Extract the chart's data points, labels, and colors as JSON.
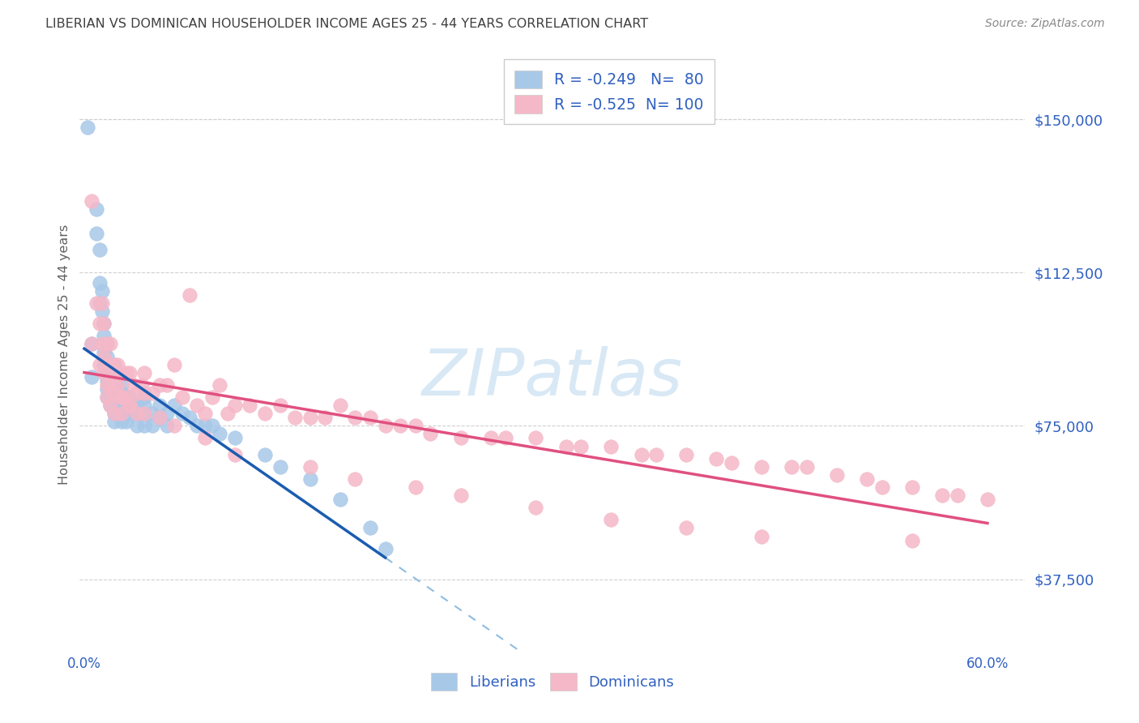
{
  "title": "LIBERIAN VS DOMINICAN HOUSEHOLDER INCOME AGES 25 - 44 YEARS CORRELATION CHART",
  "source": "Source: ZipAtlas.com",
  "ylabel": "Householder Income Ages 25 - 44 years",
  "xlabel_ticks": [
    "0.0%",
    "",
    "",
    "",
    "",
    "",
    "60.0%"
  ],
  "xlabel_vals": [
    0.0,
    0.1,
    0.2,
    0.3,
    0.4,
    0.5,
    0.6
  ],
  "yticks": [
    37500,
    75000,
    112500,
    150000
  ],
  "ytick_labels": [
    "$37,500",
    "$75,000",
    "$112,500",
    "$150,000"
  ],
  "ylim": [
    20000,
    165000
  ],
  "xlim": [
    -0.003,
    0.625
  ],
  "liberian_R": -0.249,
  "liberian_N": 80,
  "dominican_R": -0.525,
  "dominican_N": 100,
  "liberian_color": "#a8c8e8",
  "dominican_color": "#f5b8c8",
  "liberian_line_color": "#1a5cb0",
  "dominican_line_color": "#e05080",
  "dashed_line_color": "#90bce0",
  "legend_text_color": "#3060c0",
  "title_color": "#404040",
  "source_color": "#888888",
  "ylabel_color": "#606060",
  "ytick_color": "#3060c0",
  "xtick_color": "#3060c0",
  "grid_color": "#d0d0d0",
  "background_color": "#ffffff",
  "watermark": "ZIPatlas",
  "watermark_color": "#d8e8f5",
  "liberian_x": [
    0.002,
    0.005,
    0.005,
    0.008,
    0.008,
    0.01,
    0.01,
    0.01,
    0.012,
    0.012,
    0.013,
    0.013,
    0.013,
    0.013,
    0.015,
    0.015,
    0.015,
    0.015,
    0.015,
    0.015,
    0.015,
    0.017,
    0.017,
    0.017,
    0.017,
    0.017,
    0.02,
    0.02,
    0.02,
    0.02,
    0.02,
    0.02,
    0.02,
    0.02,
    0.022,
    0.022,
    0.022,
    0.022,
    0.025,
    0.025,
    0.025,
    0.025,
    0.025,
    0.028,
    0.028,
    0.028,
    0.028,
    0.03,
    0.03,
    0.03,
    0.033,
    0.033,
    0.035,
    0.035,
    0.035,
    0.038,
    0.04,
    0.04,
    0.04,
    0.04,
    0.045,
    0.045,
    0.05,
    0.05,
    0.055,
    0.055,
    0.06,
    0.065,
    0.07,
    0.075,
    0.08,
    0.085,
    0.09,
    0.1,
    0.12,
    0.13,
    0.15,
    0.17,
    0.19,
    0.2
  ],
  "liberian_y": [
    148000,
    95000,
    87000,
    128000,
    122000,
    118000,
    110000,
    105000,
    108000,
    103000,
    100000,
    97000,
    93000,
    90000,
    95000,
    92000,
    90000,
    88000,
    86000,
    84000,
    82000,
    90000,
    88000,
    85000,
    83000,
    80000,
    90000,
    88000,
    86000,
    84000,
    82000,
    80000,
    78000,
    76000,
    88000,
    85000,
    83000,
    80000,
    85000,
    83000,
    80000,
    78000,
    76000,
    82000,
    80000,
    78000,
    76000,
    82000,
    80000,
    78000,
    80000,
    78000,
    80000,
    78000,
    75000,
    78000,
    82000,
    80000,
    78000,
    75000,
    78000,
    75000,
    80000,
    77000,
    78000,
    75000,
    80000,
    78000,
    77000,
    75000,
    75000,
    75000,
    73000,
    72000,
    68000,
    65000,
    62000,
    57000,
    50000,
    45000
  ],
  "dominican_x": [
    0.005,
    0.005,
    0.008,
    0.01,
    0.01,
    0.012,
    0.012,
    0.013,
    0.013,
    0.013,
    0.015,
    0.015,
    0.015,
    0.015,
    0.017,
    0.017,
    0.017,
    0.017,
    0.02,
    0.02,
    0.02,
    0.02,
    0.022,
    0.022,
    0.025,
    0.025,
    0.025,
    0.028,
    0.028,
    0.03,
    0.03,
    0.033,
    0.035,
    0.035,
    0.038,
    0.04,
    0.04,
    0.04,
    0.045,
    0.05,
    0.055,
    0.06,
    0.065,
    0.07,
    0.075,
    0.08,
    0.085,
    0.09,
    0.095,
    0.1,
    0.11,
    0.12,
    0.13,
    0.14,
    0.15,
    0.16,
    0.17,
    0.18,
    0.19,
    0.2,
    0.21,
    0.22,
    0.23,
    0.25,
    0.27,
    0.28,
    0.3,
    0.32,
    0.33,
    0.35,
    0.37,
    0.38,
    0.4,
    0.42,
    0.43,
    0.45,
    0.47,
    0.48,
    0.5,
    0.52,
    0.53,
    0.55,
    0.57,
    0.58,
    0.6,
    0.025,
    0.03,
    0.05,
    0.06,
    0.08,
    0.1,
    0.15,
    0.18,
    0.22,
    0.25,
    0.3,
    0.35,
    0.4,
    0.45,
    0.55
  ],
  "dominican_y": [
    130000,
    95000,
    105000,
    100000,
    90000,
    105000,
    95000,
    100000,
    92000,
    88000,
    95000,
    90000,
    85000,
    82000,
    95000,
    90000,
    85000,
    80000,
    90000,
    87000,
    83000,
    78000,
    90000,
    85000,
    88000,
    82000,
    78000,
    88000,
    82000,
    88000,
    80000,
    85000,
    83000,
    78000,
    85000,
    88000,
    83000,
    78000,
    83000,
    85000,
    85000,
    90000,
    82000,
    107000,
    80000,
    78000,
    82000,
    85000,
    78000,
    80000,
    80000,
    78000,
    80000,
    77000,
    77000,
    77000,
    80000,
    77000,
    77000,
    75000,
    75000,
    75000,
    73000,
    72000,
    72000,
    72000,
    72000,
    70000,
    70000,
    70000,
    68000,
    68000,
    68000,
    67000,
    66000,
    65000,
    65000,
    65000,
    63000,
    62000,
    60000,
    60000,
    58000,
    58000,
    57000,
    82000,
    80000,
    77000,
    75000,
    72000,
    68000,
    65000,
    62000,
    60000,
    58000,
    55000,
    52000,
    50000,
    48000,
    47000
  ]
}
